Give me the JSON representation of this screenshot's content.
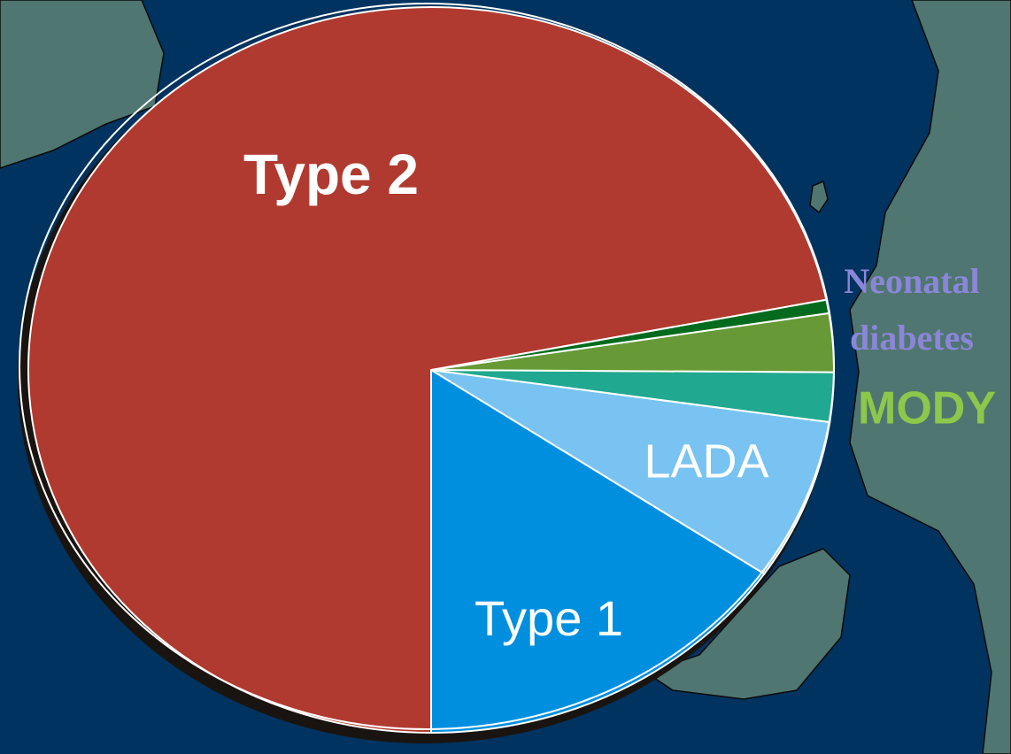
{
  "chart_data": {
    "type": "pie",
    "categories": [
      "Type 1",
      "LADA",
      null,
      "MODY",
      "Neonatal diabetes",
      "Type 2"
    ],
    "values": [
      15.5,
      7.2,
      2.2,
      2.6,
      0.6,
      71.9
    ],
    "colors": [
      "#008fdf",
      "#78c3f2",
      "#20a890",
      "#679a36",
      "#046b1e",
      "#b03a30"
    ]
  }
}
